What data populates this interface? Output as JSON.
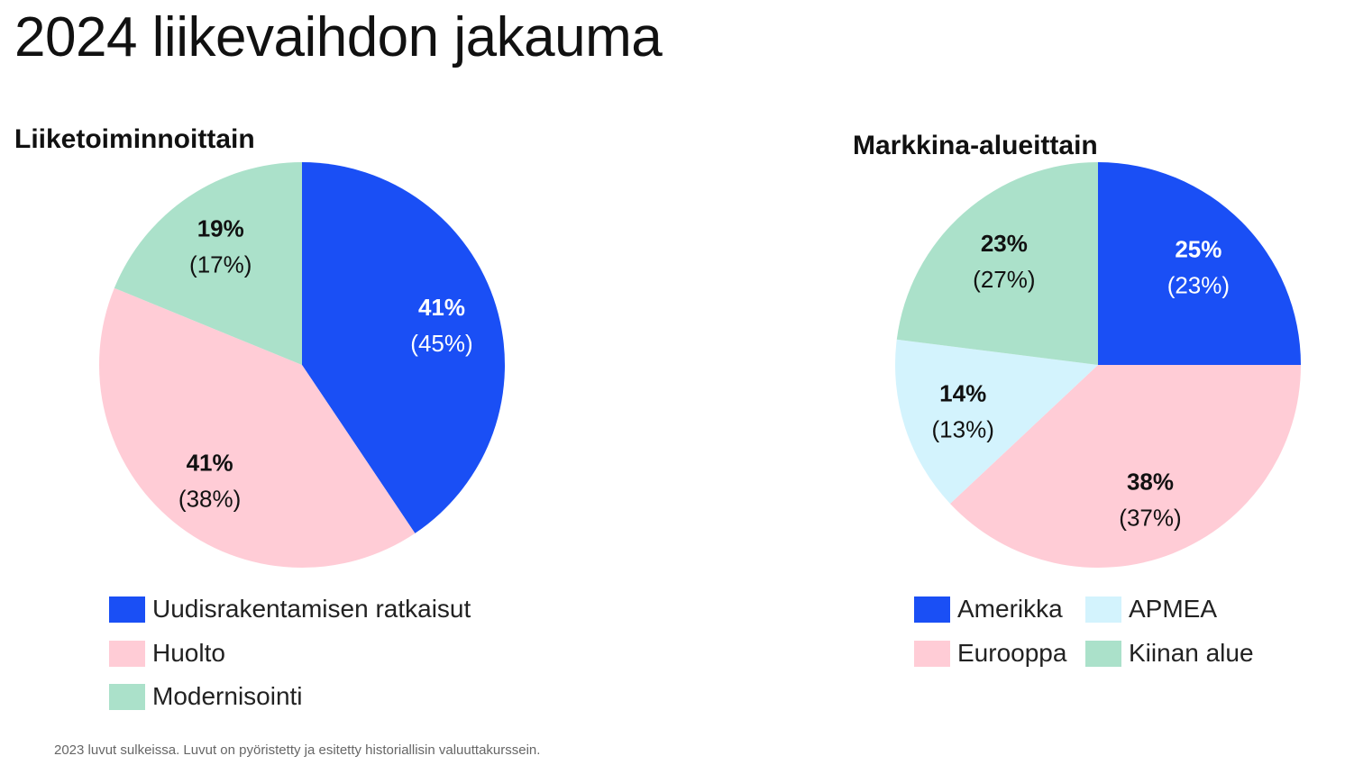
{
  "title": "2024 liikevaihdon jakauma",
  "footnote": "2023 luvut sulkeissa. Luvut on pyöristetty ja esitetty historiallisin valuuttakurssein.",
  "chart_data": [
    {
      "type": "pie",
      "title": "Liiketoiminnoittain",
      "slices": [
        {
          "name": "Uudisrakentamisen ratkaisut",
          "value": 41,
          "label": "41%",
          "prev_label": "(45%)",
          "color": "#1a4ff5",
          "label_color": "#ffffff"
        },
        {
          "name": "Huolto",
          "value": 41,
          "label": "41%",
          "prev_label": "(38%)",
          "color": "#ffccd6",
          "label_color": "#111111"
        },
        {
          "name": "Modernisointi",
          "value": 19,
          "label": "19%",
          "prev_label": "(17%)",
          "color": "#abe1ca",
          "label_color": "#111111"
        }
      ]
    },
    {
      "type": "pie",
      "title": "Markkina-alueittain",
      "slices": [
        {
          "name": "Amerikka",
          "value": 25,
          "label": "25%",
          "prev_label": "(23%)",
          "color": "#1a4ff5",
          "label_color": "#ffffff"
        },
        {
          "name": "Eurooppa",
          "value": 38,
          "label": "38%",
          "prev_label": "(37%)",
          "color": "#ffccd6",
          "label_color": "#111111"
        },
        {
          "name": "APMEA",
          "value": 14,
          "label": "14%",
          "prev_label": "(13%)",
          "color": "#d3f3fd",
          "label_color": "#111111"
        },
        {
          "name": "Kiinan alue",
          "value": 23,
          "label": "23%",
          "prev_label": "(27%)",
          "color": "#abe1ca",
          "label_color": "#111111"
        }
      ]
    }
  ]
}
